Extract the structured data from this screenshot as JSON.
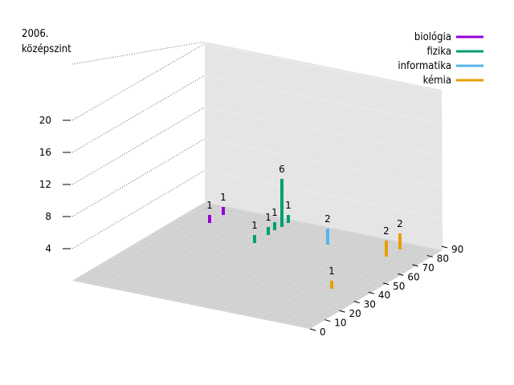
{
  "chart_data": {
    "type": "bar",
    "title_lines": [
      "2006.",
      "középszint"
    ],
    "z_ticks": [
      4,
      8,
      12,
      16,
      20
    ],
    "x_ticks": [
      0,
      10,
      20,
      30,
      40,
      50,
      60,
      70,
      80,
      90
    ],
    "legend": [
      {
        "name": "biológia",
        "color": "#9400d3"
      },
      {
        "name": "fizika",
        "color": "#009e73"
      },
      {
        "name": "informatika",
        "color": "#56b4e9"
      },
      {
        "name": "kémia",
        "color": "#e69f00"
      }
    ],
    "series": [
      {
        "name": "biológia",
        "points": [
          {
            "x": 95,
            "y": 1,
            "z": 1
          },
          {
            "x": 95,
            "y": 8,
            "z": 1
          }
        ]
      },
      {
        "name": "fizika",
        "points": [
          {
            "x": 75,
            "y": 3,
            "z": 1
          },
          {
            "x": 80,
            "y": 10,
            "z": 1
          },
          {
            "x": 82,
            "y": 13,
            "z": 1
          },
          {
            "x": 85,
            "y": 15,
            "z": 6
          },
          {
            "x": 88,
            "y": 18,
            "z": 1
          }
        ]
      },
      {
        "name": "informatika",
        "points": [
          {
            "x": 70,
            "y": 28,
            "z": 2
          }
        ]
      },
      {
        "name": "kémia",
        "points": [
          {
            "x": 45,
            "y": 30,
            "z": 1
          },
          {
            "x": 58,
            "y": 45,
            "z": 2
          },
          {
            "x": 62,
            "y": 52,
            "z": 2
          }
        ]
      }
    ]
  }
}
